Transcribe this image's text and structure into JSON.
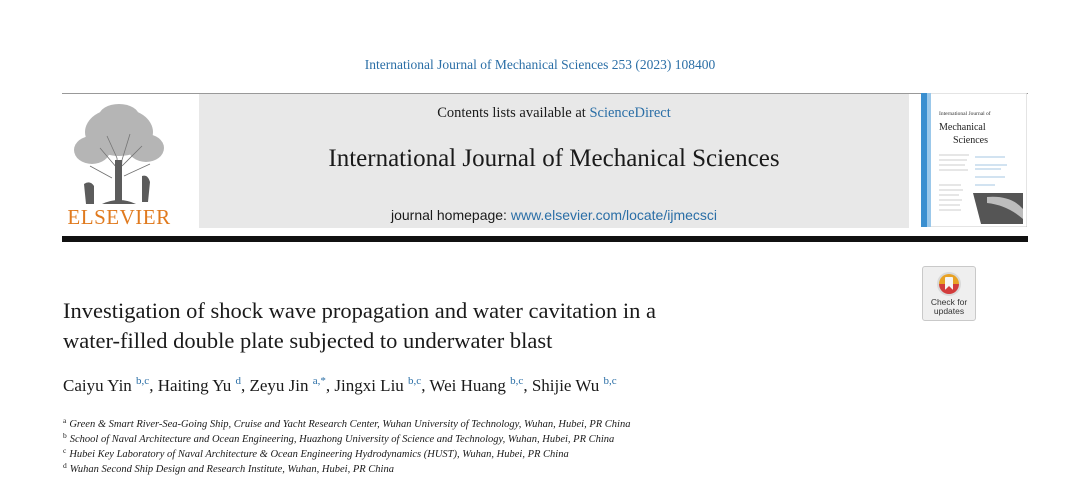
{
  "citation": "International Journal of Mechanical Sciences 253 (2023) 108400",
  "header": {
    "contents_prefix": "Contents lists available at ",
    "contents_link": "ScienceDirect",
    "journal_title": "International Journal of Mechanical Sciences",
    "homepage_prefix": "journal homepage: ",
    "homepage_link": "www.elsevier.com/locate/ijmecsci"
  },
  "publisher_logo_text": "ELSEVIER",
  "cover": {
    "line1": "International Journal of",
    "line2": "Mechanical",
    "line3": "Sciences"
  },
  "check_badge": {
    "line1": "Check for",
    "line2": "updates"
  },
  "article": {
    "title_line1": "Investigation of shock wave propagation and water cavitation in a",
    "title_line2": "water-filled double plate subjected to underwater blast"
  },
  "authors": [
    {
      "name": "Caiyu Yin",
      "sup": "b,c",
      "sep": ", "
    },
    {
      "name": "Haiting Yu",
      "sup": "d",
      "sep": ", "
    },
    {
      "name": "Zeyu Jin",
      "sup": "a,*",
      "sep": ", "
    },
    {
      "name": "Jingxi Liu",
      "sup": "b,c",
      "sep": ", "
    },
    {
      "name": "Wei Huang",
      "sup": "b,c",
      "sep": ", "
    },
    {
      "name": "Shijie Wu",
      "sup": "b,c",
      "sep": ""
    }
  ],
  "affiliations": [
    {
      "key": "a",
      "text": "Green & Smart River-Sea-Going Ship, Cruise and Yacht Research Center, Wuhan University of Technology, Wuhan, Hubei, PR China"
    },
    {
      "key": "b",
      "text": "School of Naval Architecture and Ocean Engineering, Huazhong University of Science and Technology, Wuhan, Hubei, PR China"
    },
    {
      "key": "c",
      "text": "Hubei Key Laboratory of Naval Architecture & Ocean Engineering Hydrodynamics (HUST), Wuhan, Hubei, PR China"
    },
    {
      "key": "d",
      "text": "Wuhan Second Ship Design and Research Institute, Wuhan, Hubei, PR China"
    }
  ],
  "colors": {
    "link": "#2a6ea6",
    "elsevier_orange": "#e07a1e",
    "band": "#e8e8e8"
  }
}
